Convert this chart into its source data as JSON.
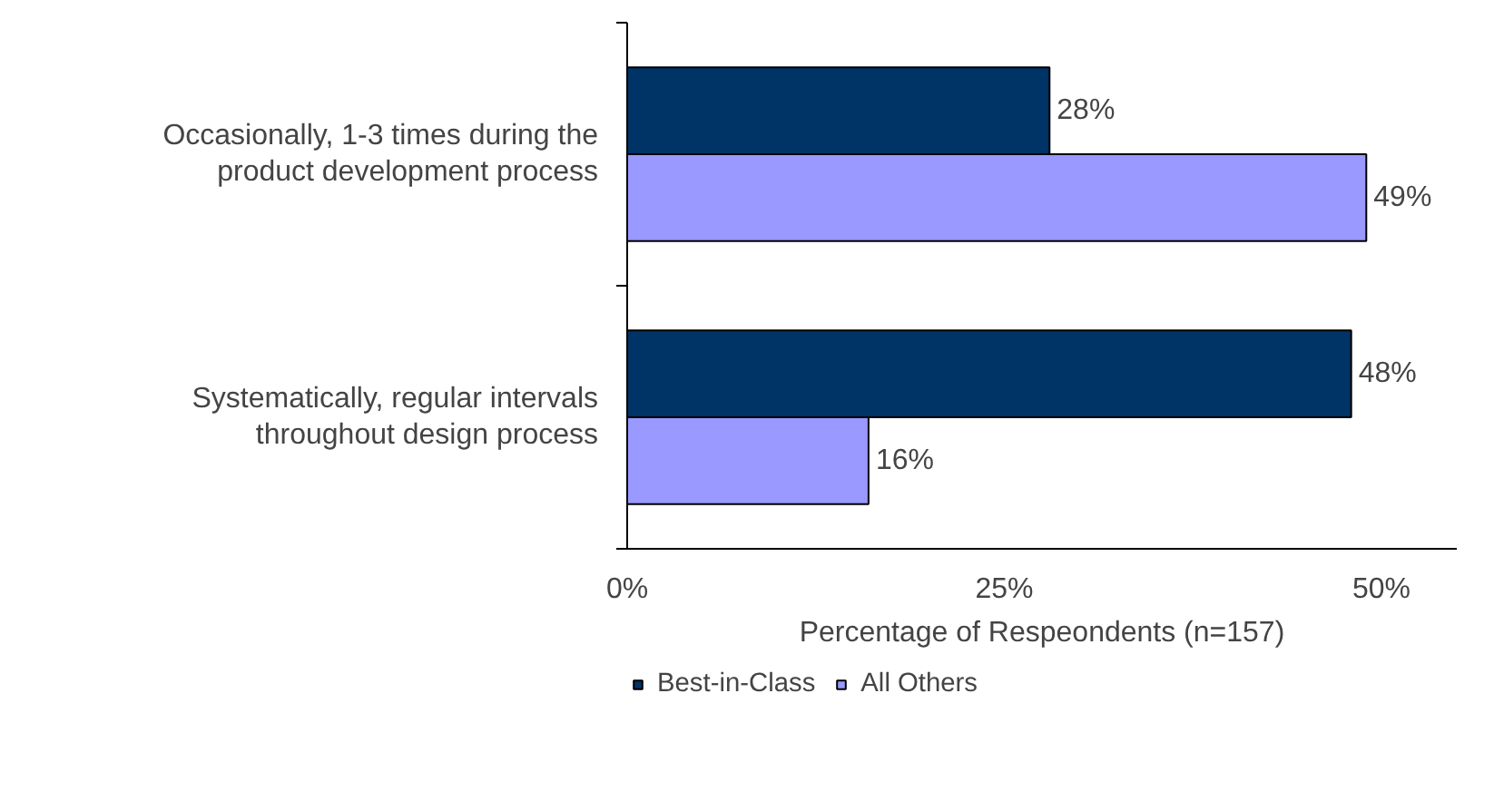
{
  "chart_data": {
    "type": "bar",
    "orientation": "horizontal",
    "xlabel": "Percentage of Respeondents (n=157)",
    "categories": [
      "Occasionally, 1-3 times during the product development process",
      "Systematically, regular intervals throughout design process"
    ],
    "series": [
      {
        "name": "Best-in-Class",
        "color": "#003366",
        "values": [
          28,
          48
        ],
        "value_labels": [
          "28%",
          "48%"
        ]
      },
      {
        "name": "All Others",
        "color": "#9999ff",
        "values": [
          49,
          16
        ],
        "value_labels": [
          "49%",
          "16%"
        ]
      }
    ],
    "xlim": [
      0,
      55
    ],
    "xticks": [
      {
        "value": 0,
        "label": "0%"
      },
      {
        "value": 25,
        "label": "25%"
      },
      {
        "value": 50,
        "label": "50%"
      }
    ],
    "grid": false,
    "legend": "bottom"
  }
}
